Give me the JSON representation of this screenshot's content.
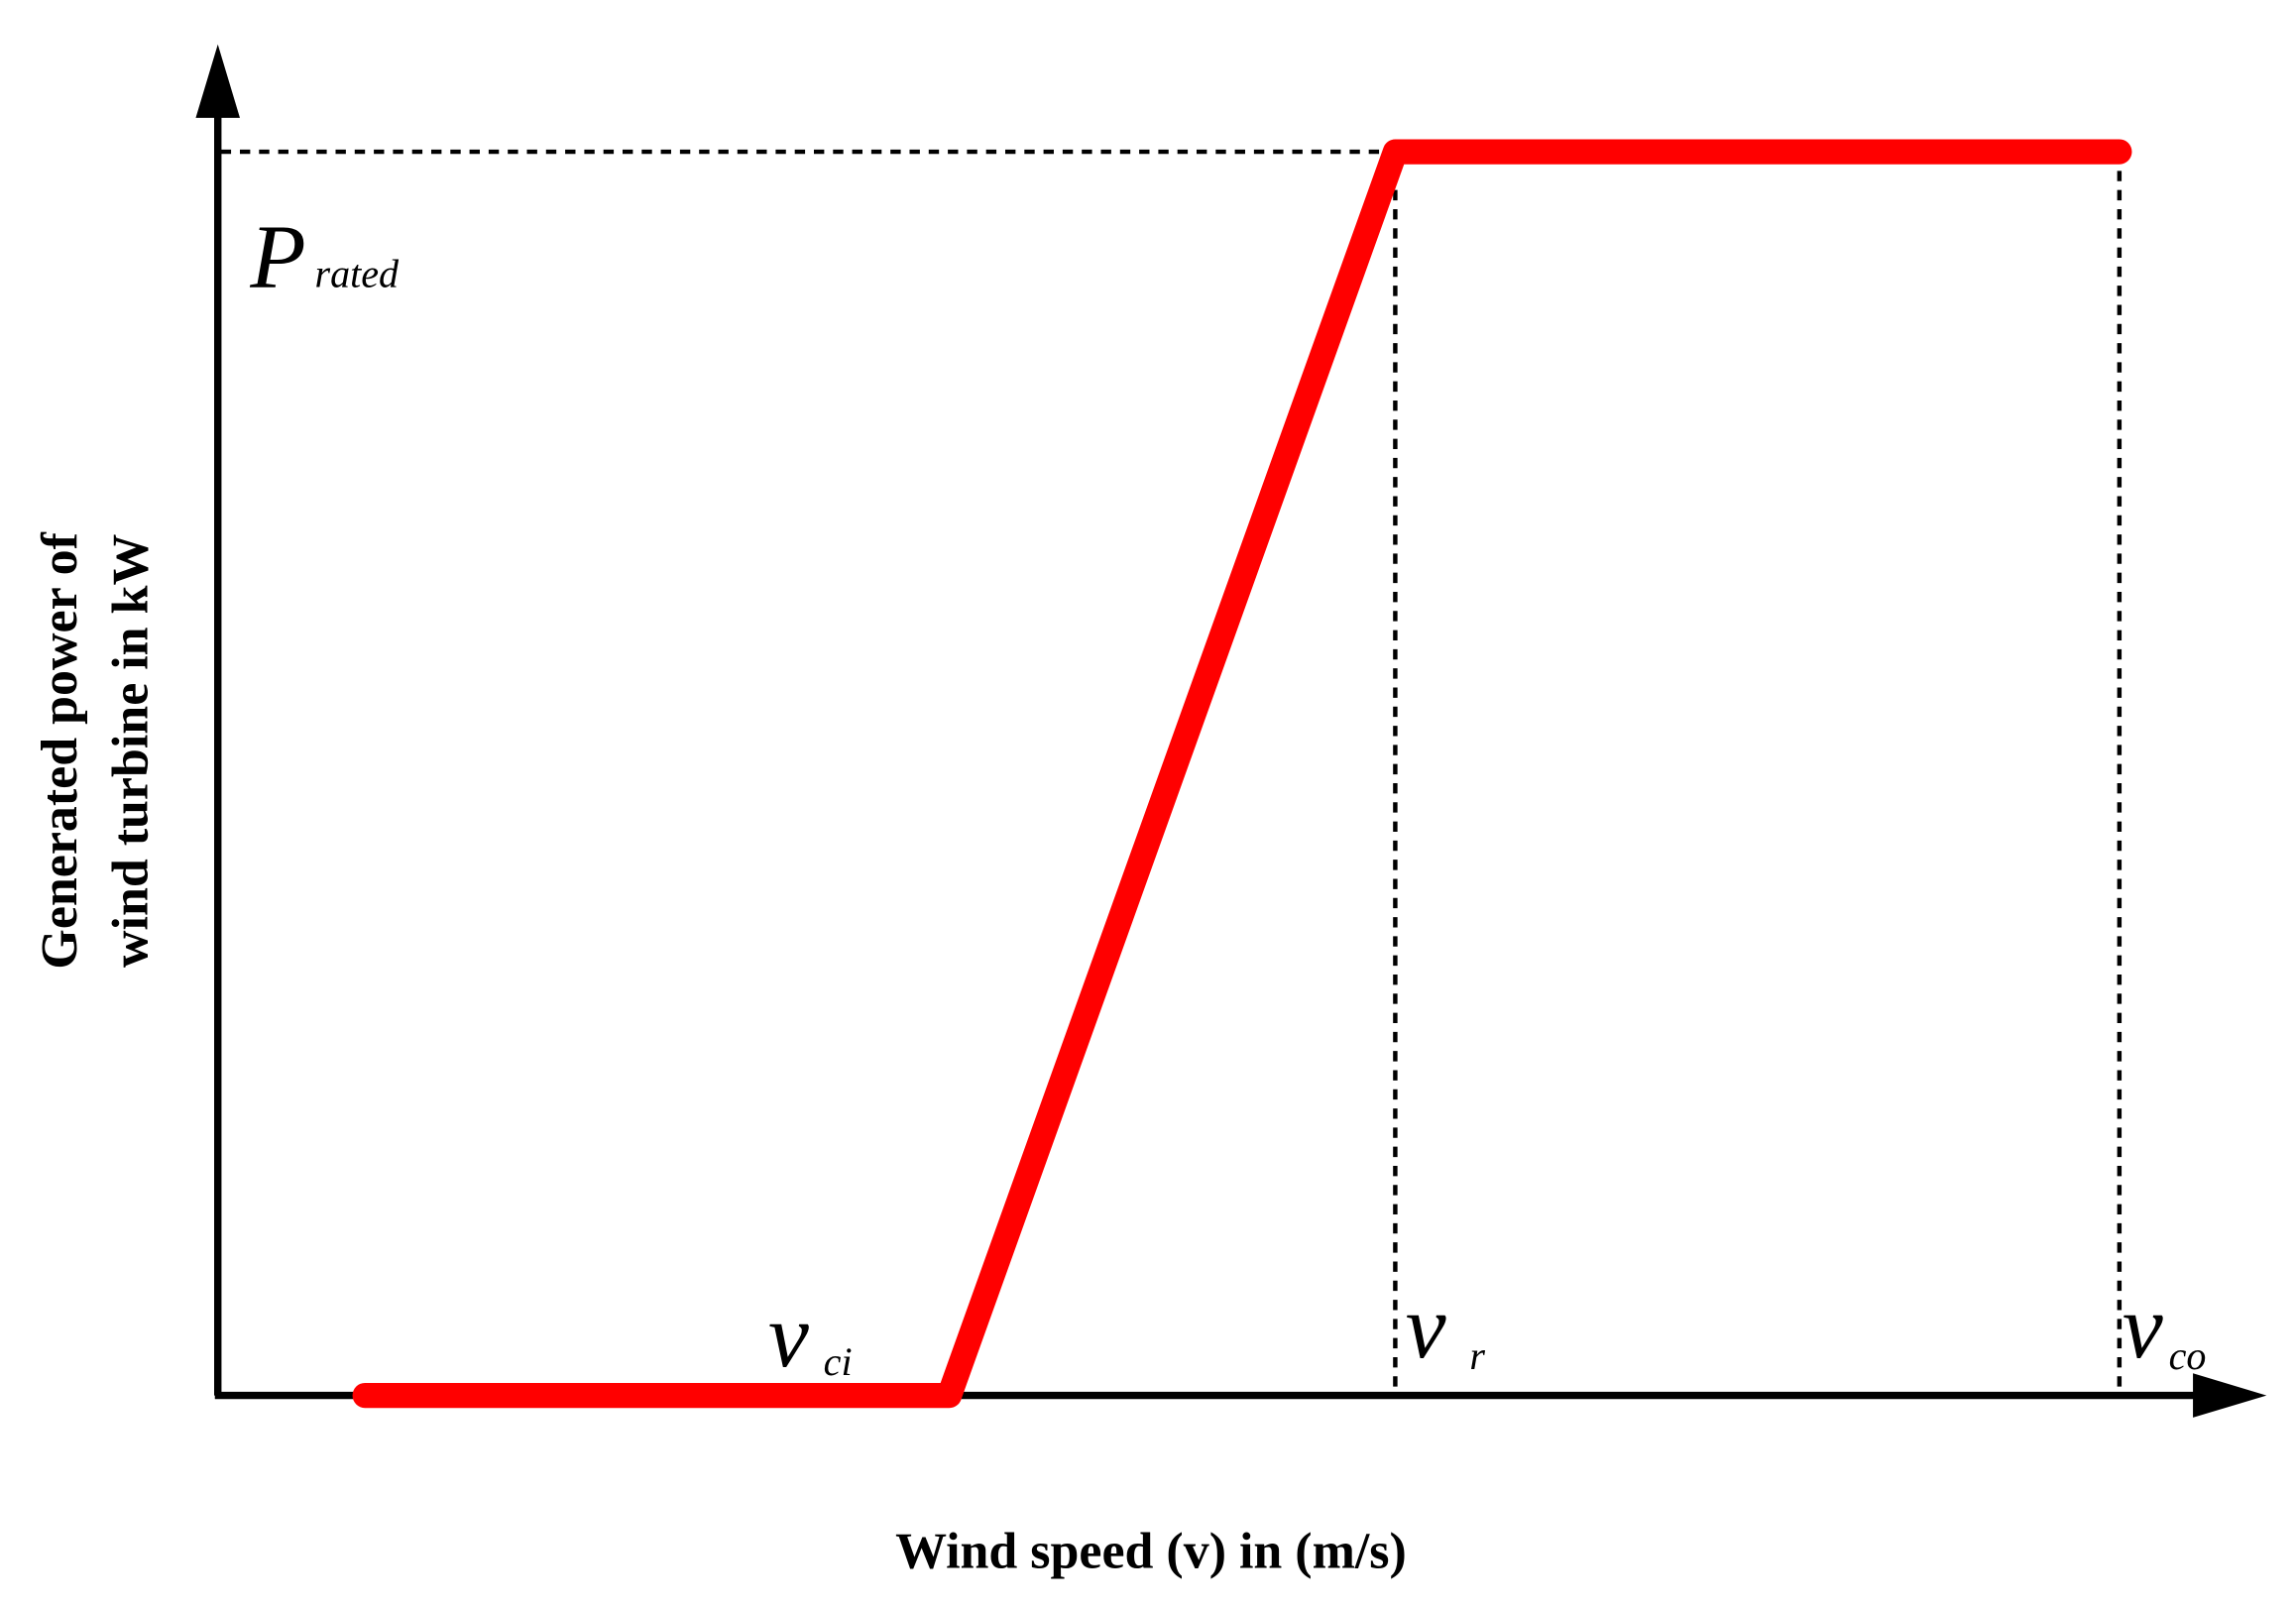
{
  "axes": {
    "y_label": [
      "Generated power of",
      "wind turbine in kW"
    ],
    "x_label": "Wind speed (v) in (m/s)"
  },
  "annotations": {
    "p_rated": {
      "symbol": "P",
      "subscript": "rated"
    },
    "v_ci": {
      "symbol": "v",
      "subscript": "ci"
    },
    "v_r": {
      "symbol": "v",
      "subscript": "r"
    },
    "v_co": {
      "symbol": "v",
      "subscript": "co"
    }
  }
}
